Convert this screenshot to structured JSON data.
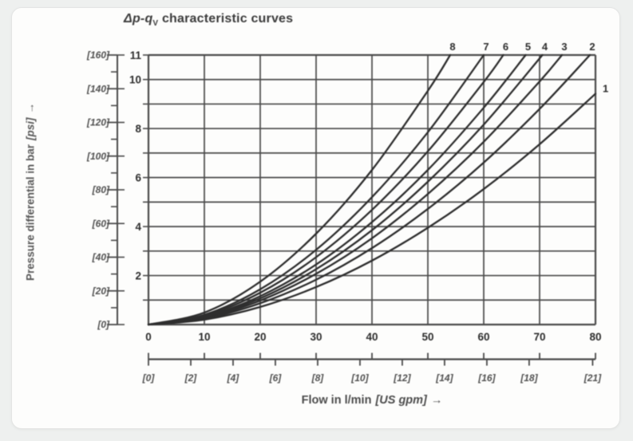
{
  "chart_data": {
    "type": "line",
    "title": {
      "italic_part": "Δp-q",
      "subscript": "V",
      "text_part": " characteristic curves"
    },
    "y_axis": {
      "label": "Pressure differential in bar",
      "bracket_label": "[psi]",
      "arrow": "→",
      "unit": "bar",
      "secondary_unit": "psi",
      "range_bar": [
        0,
        11
      ],
      "bar_gridline_step": 1,
      "bar_tick_labels": [
        11,
        10,
        8,
        6,
        4,
        2
      ],
      "range_psi": [
        0,
        160
      ],
      "psi_tick_labels": [
        160,
        140,
        120,
        100,
        80,
        60,
        40,
        20,
        0
      ],
      "psi_minor_step": 10
    },
    "x_axis": {
      "label": "Flow in l/min",
      "bracket_label": "[US gpm]",
      "arrow": "→",
      "unit": "l/min",
      "secondary_unit": "US gpm",
      "range_lmin": [
        0,
        80
      ],
      "lmin_tick_labels": [
        0,
        10,
        20,
        30,
        40,
        50,
        60,
        70,
        80
      ],
      "gpm_tick_labels": [
        0,
        2,
        4,
        6,
        8,
        10,
        12,
        14,
        16,
        18,
        21
      ],
      "lmin_per_gpm": 3.785
    },
    "grid": true,
    "legend_position": "curve-end-labels",
    "grid_color": "#4a4a4a",
    "line_color": "#2e2e2e",
    "series": [
      {
        "label": "1",
        "points": [
          [
            0,
            0
          ],
          [
            10,
            0.2
          ],
          [
            20,
            0.72
          ],
          [
            30,
            1.53
          ],
          [
            40,
            2.61
          ],
          [
            50,
            3.95
          ],
          [
            60,
            5.53
          ],
          [
            70,
            7.36
          ],
          [
            80,
            9.42
          ]
        ]
      },
      {
        "label": "2",
        "points": [
          [
            0,
            0
          ],
          [
            10,
            0.24
          ],
          [
            20,
            0.87
          ],
          [
            30,
            1.83
          ],
          [
            40,
            3.12
          ],
          [
            50,
            4.72
          ],
          [
            60,
            6.61
          ],
          [
            70,
            8.8
          ],
          [
            79,
            11
          ]
        ]
      },
      {
        "label": "3",
        "points": [
          [
            0,
            0
          ],
          [
            10,
            0.27
          ],
          [
            20,
            0.98
          ],
          [
            30,
            2.07
          ],
          [
            40,
            3.52
          ],
          [
            50,
            5.33
          ],
          [
            60,
            7.46
          ],
          [
            70,
            9.92
          ],
          [
            74,
            11
          ]
        ]
      },
      {
        "label": "4",
        "points": [
          [
            0,
            0
          ],
          [
            10,
            0.3
          ],
          [
            20,
            1.07
          ],
          [
            30,
            2.26
          ],
          [
            40,
            3.85
          ],
          [
            50,
            5.83
          ],
          [
            60,
            8.16
          ],
          [
            70.5,
            11
          ]
        ]
      },
      {
        "label": "5",
        "points": [
          [
            0,
            0
          ],
          [
            10,
            0.32
          ],
          [
            20,
            1.16
          ],
          [
            30,
            2.45
          ],
          [
            40,
            4.18
          ],
          [
            50,
            6.31
          ],
          [
            60,
            8.85
          ],
          [
            67.5,
            11
          ]
        ]
      },
      {
        "label": "6",
        "points": [
          [
            0,
            0
          ],
          [
            10,
            0.36
          ],
          [
            20,
            1.3
          ],
          [
            30,
            2.75
          ],
          [
            40,
            4.68
          ],
          [
            50,
            7.07
          ],
          [
            60,
            9.9
          ],
          [
            63.5,
            11
          ]
        ]
      },
      {
        "label": "7",
        "points": [
          [
            0,
            0
          ],
          [
            10,
            0.4
          ],
          [
            20,
            1.44
          ],
          [
            30,
            3.05
          ],
          [
            40,
            5.2
          ],
          [
            50,
            7.85
          ],
          [
            60,
            11
          ]
        ]
      },
      {
        "label": "8",
        "points": [
          [
            0,
            0
          ],
          [
            10,
            0.49
          ],
          [
            20,
            1.75
          ],
          [
            30,
            3.71
          ],
          [
            40,
            6.31
          ],
          [
            50,
            9.54
          ],
          [
            54,
            11
          ]
        ]
      }
    ]
  }
}
